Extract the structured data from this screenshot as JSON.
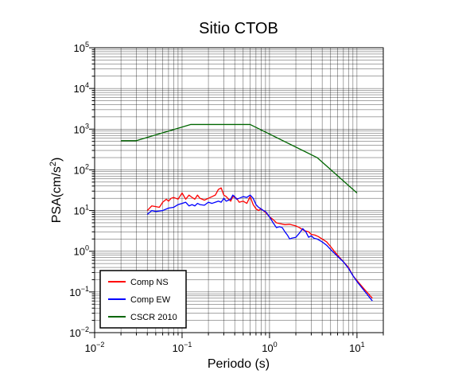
{
  "chart_data": {
    "type": "line",
    "title": "Sitio CTOB",
    "xlabel": "Periodo (s)",
    "ylabel": {
      "base": "PSA(cm/s",
      "sup": "2",
      "end": ")"
    },
    "xscale": "log",
    "yscale": "log",
    "xlim": [
      0.01,
      20
    ],
    "ylim": [
      0.01,
      100000
    ],
    "grid": true,
    "legend_position": "bottom-left",
    "x_ticks": [
      {
        "value": 0.01,
        "base": "10",
        "exp": "−2"
      },
      {
        "value": 0.1,
        "base": "10",
        "exp": "−1"
      },
      {
        "value": 1,
        "base": "10",
        "exp": "0"
      },
      {
        "value": 10,
        "base": "10",
        "exp": "1"
      }
    ],
    "y_ticks": [
      {
        "value": 0.01,
        "base": "10",
        "exp": "−2"
      },
      {
        "value": 0.1,
        "base": "10",
        "exp": "−1"
      },
      {
        "value": 1,
        "base": "10",
        "exp": "0"
      },
      {
        "value": 10,
        "base": "10",
        "exp": "1"
      },
      {
        "value": 100,
        "base": "10",
        "exp": "2"
      },
      {
        "value": 1000,
        "base": "10",
        "exp": "3"
      },
      {
        "value": 10000,
        "base": "10",
        "exp": "4"
      },
      {
        "value": 100000,
        "base": "10",
        "exp": "5"
      }
    ],
    "series": [
      {
        "name": "Comp NS",
        "color": "#ff0000",
        "points": [
          [
            0.04,
            10
          ],
          [
            0.045,
            13
          ],
          [
            0.05,
            12.5
          ],
          [
            0.055,
            12
          ],
          [
            0.06,
            16
          ],
          [
            0.066,
            19
          ],
          [
            0.07,
            17
          ],
          [
            0.075,
            20
          ],
          [
            0.08,
            21
          ],
          [
            0.09,
            19
          ],
          [
            0.1,
            27
          ],
          [
            0.11,
            19
          ],
          [
            0.12,
            24
          ],
          [
            0.13,
            21
          ],
          [
            0.14,
            19
          ],
          [
            0.15,
            24
          ],
          [
            0.16,
            20
          ],
          [
            0.18,
            18
          ],
          [
            0.2,
            20
          ],
          [
            0.22,
            22
          ],
          [
            0.24,
            24
          ],
          [
            0.26,
            33
          ],
          [
            0.28,
            36
          ],
          [
            0.3,
            24
          ],
          [
            0.32,
            22
          ],
          [
            0.34,
            19
          ],
          [
            0.36,
            17
          ],
          [
            0.38,
            22
          ],
          [
            0.42,
            20
          ],
          [
            0.45,
            16
          ],
          [
            0.5,
            17
          ],
          [
            0.55,
            15
          ],
          [
            0.6,
            22
          ],
          [
            0.65,
            14
          ],
          [
            0.7,
            11
          ],
          [
            0.75,
            10
          ],
          [
            0.8,
            11
          ],
          [
            0.85,
            10
          ],
          [
            0.9,
            9
          ],
          [
            1.0,
            7
          ],
          [
            1.1,
            6
          ],
          [
            1.2,
            5
          ],
          [
            1.3,
            4.8
          ],
          [
            1.5,
            4.5
          ],
          [
            1.7,
            4.6
          ],
          [
            2.0,
            4.2
          ],
          [
            2.2,
            3.8
          ],
          [
            2.5,
            3.2
          ],
          [
            2.8,
            3.0
          ],
          [
            3.0,
            2.6
          ],
          [
            3.3,
            2.5
          ],
          [
            3.6,
            2.3
          ],
          [
            4.0,
            2.0
          ],
          [
            4.5,
            1.7
          ],
          [
            5.0,
            1.3
          ],
          [
            5.5,
            1.0
          ],
          [
            6.0,
            0.8
          ],
          [
            7.0,
            0.55
          ],
          [
            8.0,
            0.4
          ],
          [
            9.0,
            0.25
          ],
          [
            10.0,
            0.19
          ],
          [
            12.0,
            0.12
          ],
          [
            15.0,
            0.07
          ]
        ]
      },
      {
        "name": "Comp EW",
        "color": "#0000ff",
        "points": [
          [
            0.04,
            8
          ],
          [
            0.045,
            10
          ],
          [
            0.05,
            9.5
          ],
          [
            0.06,
            10
          ],
          [
            0.07,
            11.5
          ],
          [
            0.08,
            12
          ],
          [
            0.09,
            14
          ],
          [
            0.1,
            15
          ],
          [
            0.11,
            16
          ],
          [
            0.12,
            13
          ],
          [
            0.13,
            14
          ],
          [
            0.14,
            13
          ],
          [
            0.15,
            15
          ],
          [
            0.16,
            14
          ],
          [
            0.18,
            13.5
          ],
          [
            0.2,
            16
          ],
          [
            0.22,
            15
          ],
          [
            0.24,
            16
          ],
          [
            0.26,
            17
          ],
          [
            0.28,
            16
          ],
          [
            0.3,
            20
          ],
          [
            0.32,
            17
          ],
          [
            0.34,
            18
          ],
          [
            0.36,
            19
          ],
          [
            0.38,
            24
          ],
          [
            0.4,
            22
          ],
          [
            0.42,
            19
          ],
          [
            0.45,
            20
          ],
          [
            0.5,
            22
          ],
          [
            0.55,
            21
          ],
          [
            0.6,
            24
          ],
          [
            0.65,
            20
          ],
          [
            0.7,
            14
          ],
          [
            0.75,
            12
          ],
          [
            0.8,
            11
          ],
          [
            0.85,
            10
          ],
          [
            0.9,
            9.5
          ],
          [
            1.0,
            7
          ],
          [
            1.1,
            5
          ],
          [
            1.2,
            3.8
          ],
          [
            1.3,
            4.0
          ],
          [
            1.4,
            3.8
          ],
          [
            1.5,
            3.0
          ],
          [
            1.6,
            2.5
          ],
          [
            1.7,
            2.0
          ],
          [
            1.8,
            2.1
          ],
          [
            2.0,
            2.2
          ],
          [
            2.2,
            2.8
          ],
          [
            2.4,
            3.6
          ],
          [
            2.6,
            3.0
          ],
          [
            2.8,
            2.2
          ],
          [
            3.0,
            2.4
          ],
          [
            3.2,
            2.1
          ],
          [
            3.5,
            2.0
          ],
          [
            4.0,
            1.7
          ],
          [
            4.5,
            1.4
          ],
          [
            5.0,
            1.1
          ],
          [
            5.5,
            0.9
          ],
          [
            6.0,
            0.75
          ],
          [
            7.0,
            0.55
          ],
          [
            8.0,
            0.38
          ],
          [
            9.0,
            0.25
          ],
          [
            10.0,
            0.18
          ],
          [
            12.0,
            0.11
          ],
          [
            15.0,
            0.06
          ]
        ]
      },
      {
        "name": "CSCR 2010",
        "color": "#006600",
        "points": [
          [
            0.02,
            520
          ],
          [
            0.03,
            520
          ],
          [
            0.125,
            1300
          ],
          [
            0.6,
            1300
          ],
          [
            3.5,
            200
          ],
          [
            10,
            27
          ]
        ]
      }
    ]
  }
}
